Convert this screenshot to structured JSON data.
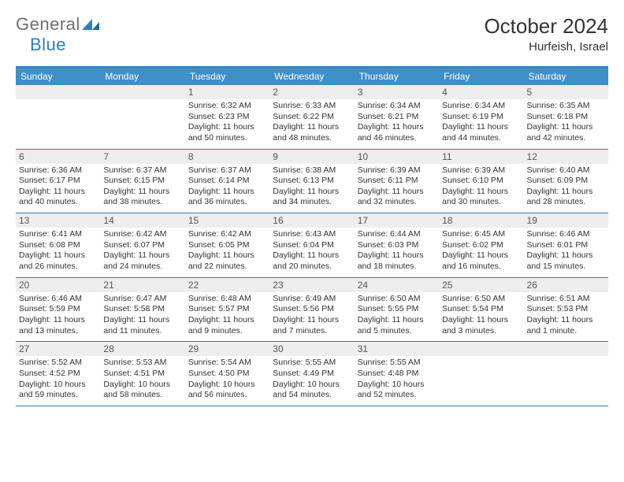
{
  "logo": {
    "part1": "General",
    "part2": "Blue"
  },
  "title": "October 2024",
  "location": "Hurfeish, Israel",
  "colors": {
    "header_bg": "#3f8fc9",
    "border": "#2a7fc5",
    "daynum_bg": "#eeeeee",
    "text": "#333333",
    "logo_gray": "#6f6f6f",
    "logo_blue": "#2a7fc5"
  },
  "weekdays": [
    "Sunday",
    "Monday",
    "Tuesday",
    "Wednesday",
    "Thursday",
    "Friday",
    "Saturday"
  ],
  "weeks": [
    [
      {
        "n": "",
        "sr": "",
        "ss": "",
        "dl": ""
      },
      {
        "n": "",
        "sr": "",
        "ss": "",
        "dl": ""
      },
      {
        "n": "1",
        "sr": "Sunrise: 6:32 AM",
        "ss": "Sunset: 6:23 PM",
        "dl": "Daylight: 11 hours and 50 minutes."
      },
      {
        "n": "2",
        "sr": "Sunrise: 6:33 AM",
        "ss": "Sunset: 6:22 PM",
        "dl": "Daylight: 11 hours and 48 minutes."
      },
      {
        "n": "3",
        "sr": "Sunrise: 6:34 AM",
        "ss": "Sunset: 6:21 PM",
        "dl": "Daylight: 11 hours and 46 minutes."
      },
      {
        "n": "4",
        "sr": "Sunrise: 6:34 AM",
        "ss": "Sunset: 6:19 PM",
        "dl": "Daylight: 11 hours and 44 minutes."
      },
      {
        "n": "5",
        "sr": "Sunrise: 6:35 AM",
        "ss": "Sunset: 6:18 PM",
        "dl": "Daylight: 11 hours and 42 minutes."
      }
    ],
    [
      {
        "n": "6",
        "sr": "Sunrise: 6:36 AM",
        "ss": "Sunset: 6:17 PM",
        "dl": "Daylight: 11 hours and 40 minutes."
      },
      {
        "n": "7",
        "sr": "Sunrise: 6:37 AM",
        "ss": "Sunset: 6:15 PM",
        "dl": "Daylight: 11 hours and 38 minutes."
      },
      {
        "n": "8",
        "sr": "Sunrise: 6:37 AM",
        "ss": "Sunset: 6:14 PM",
        "dl": "Daylight: 11 hours and 36 minutes."
      },
      {
        "n": "9",
        "sr": "Sunrise: 6:38 AM",
        "ss": "Sunset: 6:13 PM",
        "dl": "Daylight: 11 hours and 34 minutes."
      },
      {
        "n": "10",
        "sr": "Sunrise: 6:39 AM",
        "ss": "Sunset: 6:11 PM",
        "dl": "Daylight: 11 hours and 32 minutes."
      },
      {
        "n": "11",
        "sr": "Sunrise: 6:39 AM",
        "ss": "Sunset: 6:10 PM",
        "dl": "Daylight: 11 hours and 30 minutes."
      },
      {
        "n": "12",
        "sr": "Sunrise: 6:40 AM",
        "ss": "Sunset: 6:09 PM",
        "dl": "Daylight: 11 hours and 28 minutes."
      }
    ],
    [
      {
        "n": "13",
        "sr": "Sunrise: 6:41 AM",
        "ss": "Sunset: 6:08 PM",
        "dl": "Daylight: 11 hours and 26 minutes."
      },
      {
        "n": "14",
        "sr": "Sunrise: 6:42 AM",
        "ss": "Sunset: 6:07 PM",
        "dl": "Daylight: 11 hours and 24 minutes."
      },
      {
        "n": "15",
        "sr": "Sunrise: 6:42 AM",
        "ss": "Sunset: 6:05 PM",
        "dl": "Daylight: 11 hours and 22 minutes."
      },
      {
        "n": "16",
        "sr": "Sunrise: 6:43 AM",
        "ss": "Sunset: 6:04 PM",
        "dl": "Daylight: 11 hours and 20 minutes."
      },
      {
        "n": "17",
        "sr": "Sunrise: 6:44 AM",
        "ss": "Sunset: 6:03 PM",
        "dl": "Daylight: 11 hours and 18 minutes."
      },
      {
        "n": "18",
        "sr": "Sunrise: 6:45 AM",
        "ss": "Sunset: 6:02 PM",
        "dl": "Daylight: 11 hours and 16 minutes."
      },
      {
        "n": "19",
        "sr": "Sunrise: 6:46 AM",
        "ss": "Sunset: 6:01 PM",
        "dl": "Daylight: 11 hours and 15 minutes."
      }
    ],
    [
      {
        "n": "20",
        "sr": "Sunrise: 6:46 AM",
        "ss": "Sunset: 5:59 PM",
        "dl": "Daylight: 11 hours and 13 minutes."
      },
      {
        "n": "21",
        "sr": "Sunrise: 6:47 AM",
        "ss": "Sunset: 5:58 PM",
        "dl": "Daylight: 11 hours and 11 minutes."
      },
      {
        "n": "22",
        "sr": "Sunrise: 6:48 AM",
        "ss": "Sunset: 5:57 PM",
        "dl": "Daylight: 11 hours and 9 minutes."
      },
      {
        "n": "23",
        "sr": "Sunrise: 6:49 AM",
        "ss": "Sunset: 5:56 PM",
        "dl": "Daylight: 11 hours and 7 minutes."
      },
      {
        "n": "24",
        "sr": "Sunrise: 6:50 AM",
        "ss": "Sunset: 5:55 PM",
        "dl": "Daylight: 11 hours and 5 minutes."
      },
      {
        "n": "25",
        "sr": "Sunrise: 6:50 AM",
        "ss": "Sunset: 5:54 PM",
        "dl": "Daylight: 11 hours and 3 minutes."
      },
      {
        "n": "26",
        "sr": "Sunrise: 6:51 AM",
        "ss": "Sunset: 5:53 PM",
        "dl": "Daylight: 11 hours and 1 minute."
      }
    ],
    [
      {
        "n": "27",
        "sr": "Sunrise: 5:52 AM",
        "ss": "Sunset: 4:52 PM",
        "dl": "Daylight: 10 hours and 59 minutes."
      },
      {
        "n": "28",
        "sr": "Sunrise: 5:53 AM",
        "ss": "Sunset: 4:51 PM",
        "dl": "Daylight: 10 hours and 58 minutes."
      },
      {
        "n": "29",
        "sr": "Sunrise: 5:54 AM",
        "ss": "Sunset: 4:50 PM",
        "dl": "Daylight: 10 hours and 56 minutes."
      },
      {
        "n": "30",
        "sr": "Sunrise: 5:55 AM",
        "ss": "Sunset: 4:49 PM",
        "dl": "Daylight: 10 hours and 54 minutes."
      },
      {
        "n": "31",
        "sr": "Sunrise: 5:55 AM",
        "ss": "Sunset: 4:48 PM",
        "dl": "Daylight: 10 hours and 52 minutes."
      },
      {
        "n": "",
        "sr": "",
        "ss": "",
        "dl": ""
      },
      {
        "n": "",
        "sr": "",
        "ss": "",
        "dl": ""
      }
    ]
  ]
}
